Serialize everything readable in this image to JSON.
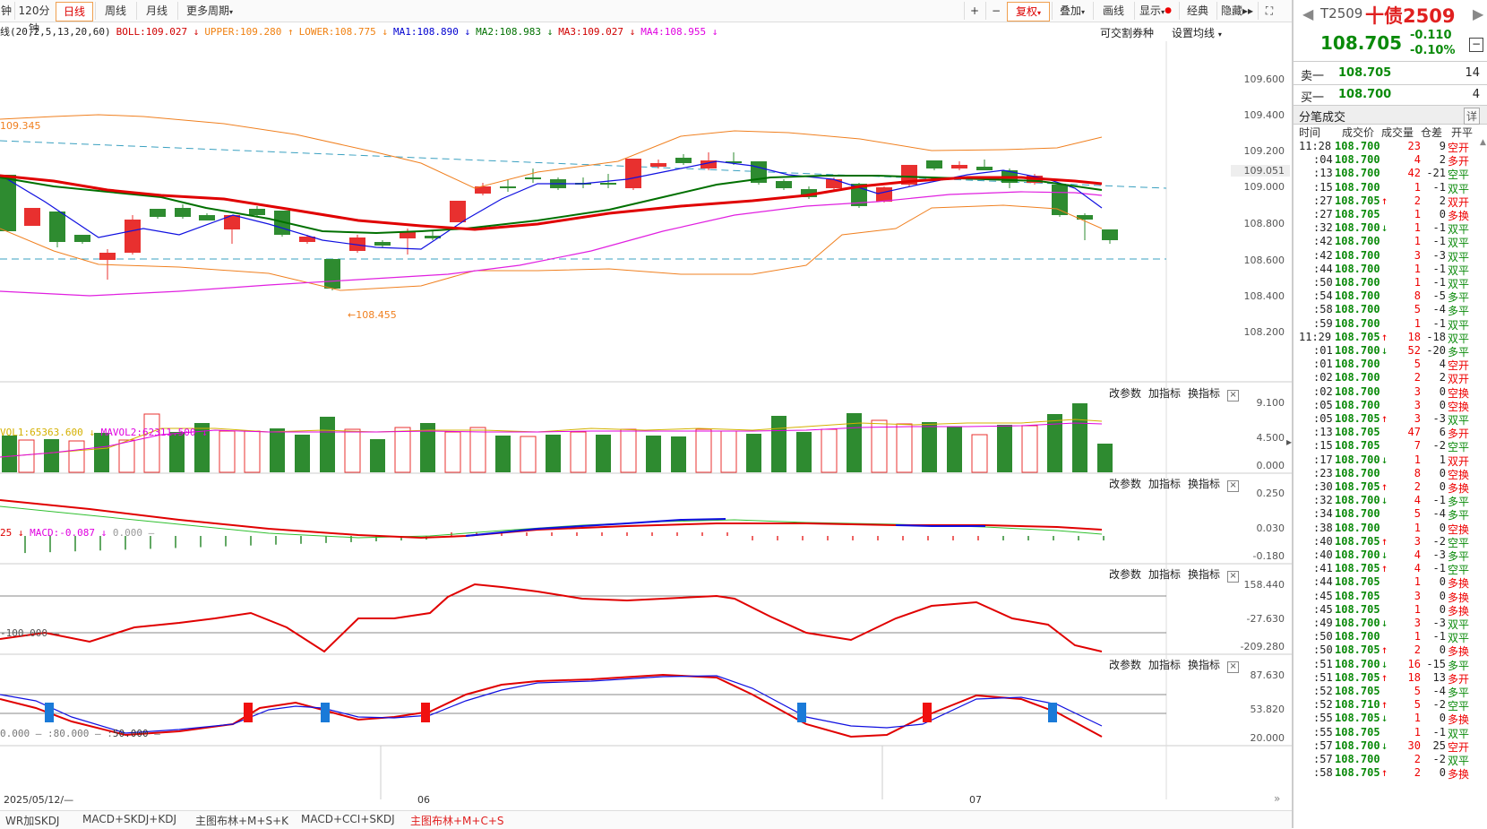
{
  "toolbar": {
    "left_tabs": [
      "钟",
      "120分钟",
      "日线",
      "周线",
      "月线",
      "更多周期"
    ],
    "active_tab": "日线",
    "right_buttons": [
      "+",
      "−",
      "复权",
      "叠加",
      "画线",
      "显示",
      "经典",
      "隐藏",
      "⛶"
    ]
  },
  "legend": {
    "boll": "线(20,2,5,13,20,60)",
    "items": [
      {
        "text": "BOLL:109.027",
        "arrow": "↓",
        "color": "#d00000"
      },
      {
        "text": "UPPER:109.280",
        "arrow": "↑",
        "color": "#f08010"
      },
      {
        "text": "LOWER:108.775",
        "arrow": "↓",
        "color": "#f08010"
      },
      {
        "text": "MA1:108.890",
        "arrow": "↓",
        "color": "#0000d0"
      },
      {
        "text": "MA2:108.983",
        "arrow": "↓",
        "color": "#007000"
      },
      {
        "text": "MA3:109.027",
        "arrow": "↓",
        "color": "#d00000"
      },
      {
        "text": "MA4:108.955",
        "arrow": "↓",
        "color": "#e000e0"
      }
    ],
    "right1": "可交割券种",
    "right2": "设置均线"
  },
  "main_axis": [
    "109.600",
    "109.400",
    "109.200",
    "109.051",
    "109.000",
    "108.800",
    "108.600",
    "108.400",
    "108.200"
  ],
  "main_annotations": {
    "high": "109.345",
    "low": "108.455"
  },
  "vol": {
    "label1": "VOL1:65363.600",
    "label2": "MAVOL2:62311.500",
    "axis": [
      "9.100",
      "4.500",
      "0.000"
    ]
  },
  "macd": {
    "label0": "25",
    "label1": "MACD:-0.087",
    "label2": "0.000",
    "axis": [
      "0.250",
      "0.030",
      "-0.180"
    ]
  },
  "cci": {
    "label": "-100.000",
    "axis": [
      "158.440",
      "-27.630",
      "-209.280"
    ]
  },
  "skdj": {
    "label1": "0.000",
    "label2": "80.000",
    "label3": "50.000",
    "axis": [
      "87.630",
      "53.820",
      "20.000"
    ]
  },
  "panel_buttons": [
    "改参数",
    "加指标",
    "换指标"
  ],
  "date_axis": {
    "start": "2025/05/12/—",
    "m1": "06",
    "m2": "07"
  },
  "bottom_tabs": [
    "WR加SKDJ",
    "MACD+SKDJ+KDJ",
    "主图布林+M+S+K",
    "MACD+CCI+SKDJ",
    "主图布林+M+C+S"
  ],
  "bottom_active": "主图布林+M+C+S",
  "colors": {
    "up": "#e8302f",
    "down": "#2e8b30",
    "ma_red": "#e00000",
    "ma_green": "#007000",
    "ma_blue": "#1010e0",
    "ma_pink": "#e020e0",
    "boll": "#f08020"
  },
  "right_panel": {
    "code": "T2509",
    "name": "十债2509",
    "price": "108.705",
    "change": "-0.110",
    "pct": "-0.10%",
    "sell_label": "卖一",
    "sell_price": "108.705",
    "sell_vol": "14",
    "buy_label": "买一",
    "buy_price": "108.700",
    "buy_vol": "4",
    "section": "分笔成交",
    "detail": "详",
    "headers": [
      "时间",
      "成交价",
      "成交量",
      "仓差",
      "开平"
    ],
    "trades": [
      [
        "11:28",
        "108.700",
        "",
        "23",
        "9",
        "空开"
      ],
      [
        ":04",
        "108.700",
        "",
        "4",
        "2",
        "多开"
      ],
      [
        ":13",
        "108.700",
        "",
        "42",
        "-21",
        "空平"
      ],
      [
        ":15",
        "108.700",
        "",
        "1",
        "-1",
        "双平"
      ],
      [
        ":27",
        "108.705",
        "↑",
        "2",
        "2",
        "双开"
      ],
      [
        ":27",
        "108.705",
        "",
        "1",
        "0",
        "多换"
      ],
      [
        ":32",
        "108.700",
        "↓",
        "1",
        "-1",
        "双平"
      ],
      [
        ":42",
        "108.700",
        "",
        "1",
        "-1",
        "双平"
      ],
      [
        ":42",
        "108.700",
        "",
        "3",
        "-3",
        "双平"
      ],
      [
        ":44",
        "108.700",
        "",
        "1",
        "-1",
        "双平"
      ],
      [
        ":50",
        "108.700",
        "",
        "1",
        "-1",
        "双平"
      ],
      [
        ":54",
        "108.700",
        "",
        "8",
        "-5",
        "多平"
      ],
      [
        ":58",
        "108.700",
        "",
        "5",
        "-4",
        "多平"
      ],
      [
        ":59",
        "108.700",
        "",
        "1",
        "-1",
        "双平"
      ],
      [
        "11:29",
        "108.705",
        "↑",
        "18",
        "-18",
        "双平"
      ],
      [
        ":01",
        "108.700",
        "↓",
        "52",
        "-20",
        "多平"
      ],
      [
        ":01",
        "108.700",
        "",
        "5",
        "4",
        "空开"
      ],
      [
        ":02",
        "108.700",
        "",
        "2",
        "2",
        "双开"
      ],
      [
        ":02",
        "108.700",
        "",
        "3",
        "0",
        "空换"
      ],
      [
        ":05",
        "108.700",
        "",
        "3",
        "0",
        "空换"
      ],
      [
        ":05",
        "108.705",
        "↑",
        "3",
        "-3",
        "双平"
      ],
      [
        ":13",
        "108.705",
        "",
        "47",
        "6",
        "多开"
      ],
      [
        ":15",
        "108.705",
        "",
        "7",
        "-2",
        "空平"
      ],
      [
        ":17",
        "108.700",
        "↓",
        "1",
        "1",
        "双开"
      ],
      [
        ":23",
        "108.700",
        "",
        "8",
        "0",
        "空换"
      ],
      [
        ":30",
        "108.705",
        "↑",
        "2",
        "0",
        "多换"
      ],
      [
        ":32",
        "108.700",
        "↓",
        "4",
        "-1",
        "多平"
      ],
      [
        ":34",
        "108.700",
        "",
        "5",
        "-4",
        "多平"
      ],
      [
        ":38",
        "108.700",
        "",
        "1",
        "0",
        "空换"
      ],
      [
        ":40",
        "108.705",
        "↑",
        "3",
        "-2",
        "空平"
      ],
      [
        ":40",
        "108.700",
        "↓",
        "4",
        "-3",
        "多平"
      ],
      [
        ":41",
        "108.705",
        "↑",
        "4",
        "-1",
        "空平"
      ],
      [
        ":44",
        "108.705",
        "",
        "1",
        "0",
        "多换"
      ],
      [
        ":45",
        "108.705",
        "",
        "3",
        "0",
        "多换"
      ],
      [
        ":45",
        "108.705",
        "",
        "1",
        "0",
        "多换"
      ],
      [
        ":49",
        "108.700",
        "↓",
        "3",
        "-3",
        "双平"
      ],
      [
        ":50",
        "108.700",
        "",
        "1",
        "-1",
        "双平"
      ],
      [
        ":50",
        "108.705",
        "↑",
        "2",
        "0",
        "多换"
      ],
      [
        ":51",
        "108.700",
        "↓",
        "16",
        "-15",
        "多平"
      ],
      [
        ":51",
        "108.705",
        "↑",
        "18",
        "13",
        "多开"
      ],
      [
        ":52",
        "108.705",
        "",
        "5",
        "-4",
        "多平"
      ],
      [
        ":52",
        "108.710",
        "↑",
        "5",
        "-2",
        "空平"
      ],
      [
        ":55",
        "108.705",
        "↓",
        "1",
        "0",
        "多换"
      ],
      [
        ":55",
        "108.705",
        "",
        "1",
        "-1",
        "双平"
      ],
      [
        ":57",
        "108.700",
        "↓",
        "30",
        "25",
        "空开"
      ],
      [
        ":57",
        "108.700",
        "",
        "2",
        "-2",
        "双平"
      ],
      [
        ":58",
        "108.705",
        "↑",
        "2",
        "0",
        "多换"
      ]
    ]
  }
}
